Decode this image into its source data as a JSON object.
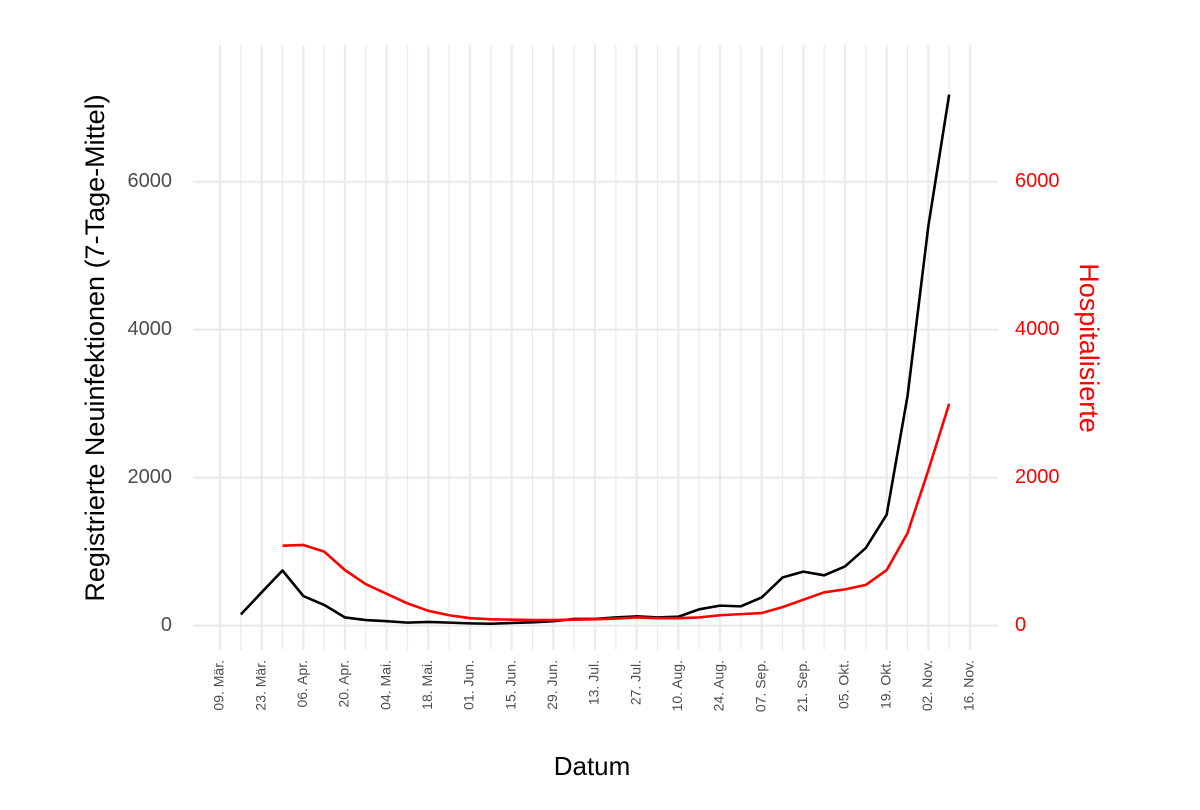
{
  "chart_data": {
    "type": "line",
    "x_label": "Datum",
    "y_label": "Registrierte Neuinfektionen (7-Tage-Mittel)",
    "y2_label": "Hospitalisierte",
    "categories": [
      "09. Mär.",
      null,
      "23. Mär.",
      null,
      "06. Apr.",
      null,
      "20. Apr.",
      null,
      "04. Mai.",
      null,
      "18. Mai.",
      null,
      "01. Jun.",
      null,
      "15. Jun.",
      null,
      "29. Jun.",
      null,
      "13. Jul.",
      null,
      "27. Jul.",
      null,
      "10. Aug.",
      null,
      "24. Aug.",
      null,
      "07. Sep.",
      null,
      "21. Sep.",
      null,
      "05. Okt.",
      null,
      "19. Okt.",
      null,
      "02. Nov.",
      null,
      "16. Nov."
    ],
    "series": [
      {
        "name": "Registrierte Neuinfektionen",
        "color": "#000000",
        "values": [
          null,
          150,
          450,
          745,
          400,
          280,
          110,
          75,
          60,
          40,
          50,
          40,
          30,
          25,
          35,
          45,
          60,
          90,
          90,
          110,
          125,
          110,
          120,
          220,
          270,
          260,
          380,
          650,
          730,
          680,
          800,
          1050,
          1500,
          3100,
          5400,
          7180,
          null
        ]
      },
      {
        "name": "Hospitalisierte",
        "color": "#ff0000",
        "axis": "y2",
        "values": [
          null,
          null,
          null,
          1080,
          1090,
          1000,
          750,
          560,
          430,
          300,
          200,
          140,
          100,
          85,
          80,
          75,
          75,
          80,
          85,
          95,
          110,
          100,
          100,
          110,
          140,
          155,
          170,
          250,
          350,
          450,
          490,
          550,
          750,
          1250,
          2100,
          3000,
          null
        ]
      }
    ],
    "ylim": [
      -330,
      7850
    ],
    "yticks": [
      0,
      2000,
      4000,
      6000
    ],
    "y2lim": [
      -330,
      7850
    ],
    "y2ticks": [
      0,
      2000,
      4000,
      6000
    ],
    "grid": true
  }
}
